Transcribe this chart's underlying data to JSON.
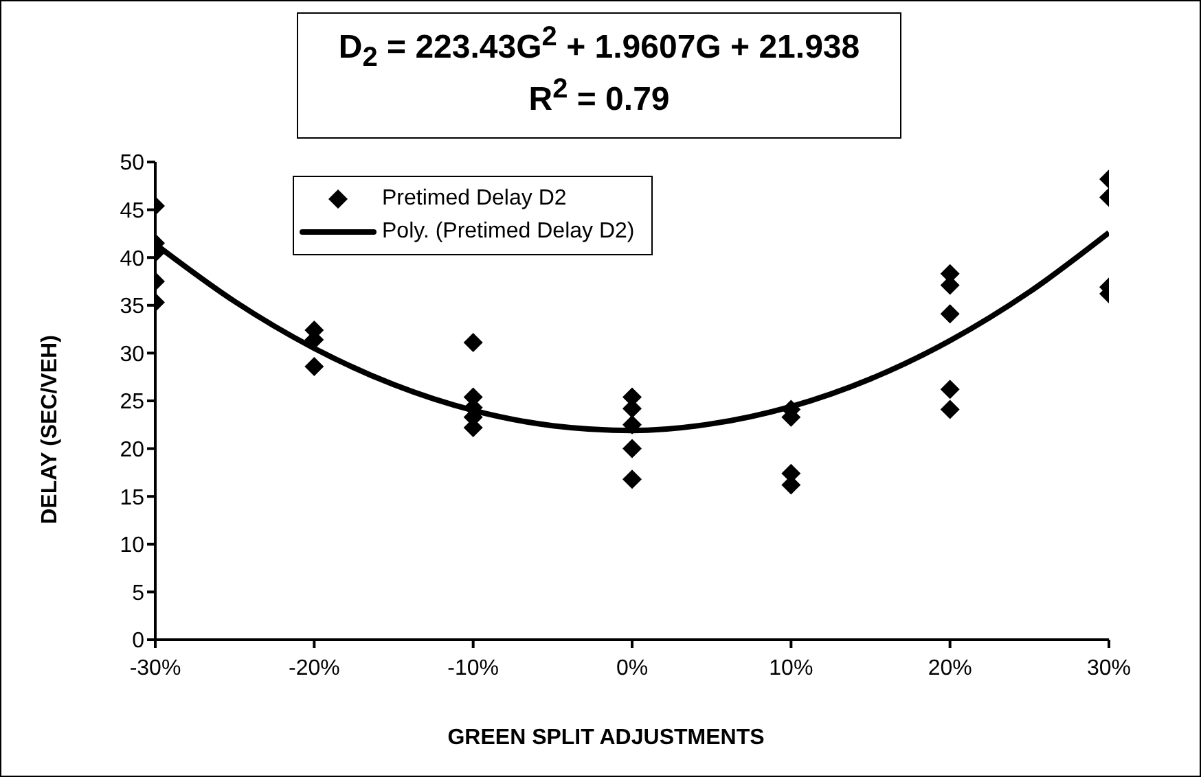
{
  "chart_data": {
    "type": "scatter",
    "title": "D$_{2}$ = 223.43G$^{2}$ + 1.9607G + 21.938",
    "subtitle": "R$^{2}$ = 0.79",
    "xlabel": "GREEN SPLIT ADJUSTMENTS",
    "ylabel": "DELAY (SEC/VEH)",
    "xlim": [
      -30,
      30
    ],
    "xticks": [
      {
        "value": -30,
        "label": "-30%"
      },
      {
        "value": -20,
        "label": "-20%"
      },
      {
        "value": -10,
        "label": "-10%"
      },
      {
        "value": 0,
        "label": "0%"
      },
      {
        "value": 10,
        "label": "10%"
      },
      {
        "value": 20,
        "label": "20%"
      },
      {
        "value": 30,
        "label": "30%"
      }
    ],
    "ylim": [
      0,
      50
    ],
    "yticks": [
      0,
      5,
      10,
      15,
      20,
      25,
      30,
      35,
      40,
      45,
      50
    ],
    "grid": false,
    "legend": "top",
    "series": [
      {
        "name": "Pretimed Delay D2",
        "marker": "diamond",
        "color": "#000000",
        "x": [
          -30,
          -30,
          -30,
          -30,
          -30,
          -20,
          -20,
          -20,
          -10,
          -10,
          -10,
          -10,
          -10,
          0,
          0,
          0,
          0,
          0,
          10,
          10,
          10,
          10,
          20,
          20,
          20,
          20,
          20,
          30,
          30,
          30,
          30
        ],
        "values": [
          45.4,
          41.5,
          40.5,
          37.5,
          35.3,
          32.4,
          31.4,
          28.6,
          31.1,
          25.4,
          24.3,
          23.3,
          22.2,
          25.4,
          24.2,
          22.5,
          20,
          16.8,
          24.1,
          23.3,
          17.4,
          16.2,
          38.3,
          37.1,
          34.1,
          26.2,
          24.1,
          48.2,
          46.3,
          36.9,
          36.2
        ]
      },
      {
        "name": "Poly. (Pretimed Delay D2)",
        "type": "line",
        "color": "#000000",
        "line_style": "solid",
        "x": [
          -30,
          -25,
          -20,
          -15,
          -10,
          -5,
          0,
          5,
          10,
          15,
          20,
          25,
          30
        ],
        "values": [
          41.4,
          35.4,
          30.5,
          26.7,
          24,
          22.4,
          21.9,
          22.6,
          24.4,
          27.3,
          31.3,
          36.4,
          42.6
        ]
      }
    ]
  }
}
